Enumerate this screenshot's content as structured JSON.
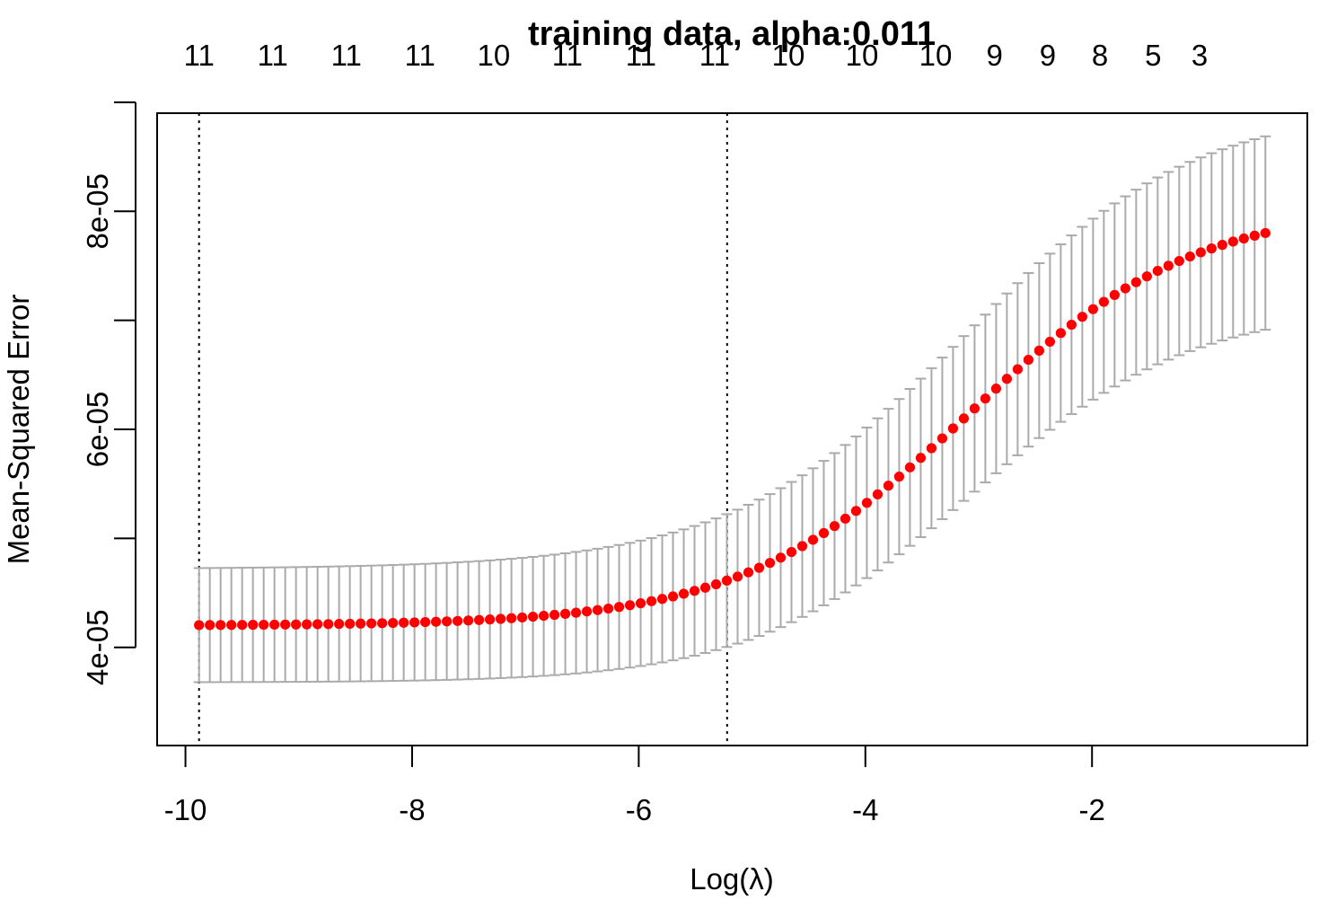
{
  "chart_data": {
    "type": "scatter",
    "title": "training data, alpha:0.011",
    "xlabel": "Log(λ)",
    "ylabel": "Mean-Squared Error",
    "xlim": [
      -10.25,
      -0.1
    ],
    "ylim": [
      3.1e-05,
      8.9e-05
    ],
    "x_ticks": [
      -10,
      -8,
      -6,
      -4,
      -2
    ],
    "x_tick_labels": [
      "-10",
      "-8",
      "-6",
      "-4",
      "-2"
    ],
    "y_ticks": [
      4e-05,
      5e-05,
      6e-05,
      7e-05,
      8e-05,
      9e-05
    ],
    "y_tick_labels": [
      "4e-05",
      "",
      "6e-05",
      "",
      "8e-05",
      ""
    ],
    "top_axis": {
      "x": [
        -9.88,
        -9.23,
        -8.58,
        -7.93,
        -7.28,
        -6.63,
        -5.98,
        -5.33,
        -4.68,
        -4.03,
        -3.38,
        -2.86,
        -2.39,
        -1.93,
        -1.46,
        -1.05
      ],
      "labels": [
        "11",
        "11",
        "11",
        "11",
        "10",
        "11",
        "11",
        "11",
        "10",
        "10",
        "10",
        "9",
        "9",
        "8",
        "5",
        "3"
      ]
    },
    "vlines": [
      -9.88,
      -5.22
    ],
    "grid": false,
    "legend": "none",
    "series": [
      {
        "color": "#ff0000",
        "errorbar_color": "#aaaaaa",
        "x_start": -9.88,
        "x_end": -0.47,
        "n_points": 100,
        "mean": {
          "min": 4.2e-05,
          "max": 8.06e-05,
          "midpoint": -3.1,
          "scale": 1.0
        },
        "spread": {
          "min": 5.2e-06,
          "max": 9.2e-06,
          "midpoint": -3.6,
          "scale": 1.3
        }
      }
    ]
  }
}
